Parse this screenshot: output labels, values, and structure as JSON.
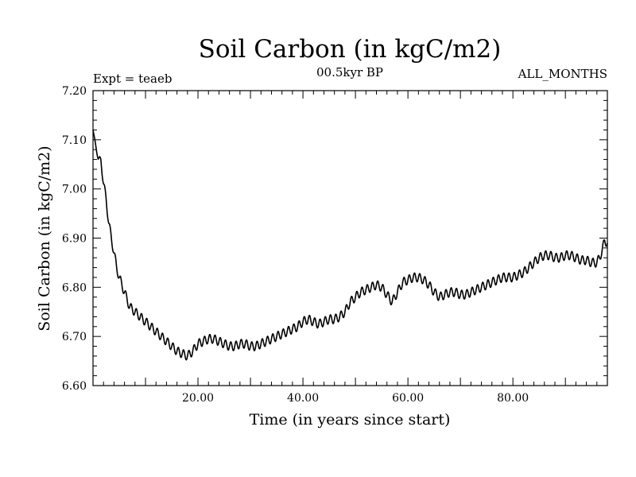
{
  "chart_data": {
    "type": "line",
    "title": "Soil Carbon (in kgC/m2)",
    "subtitle": "00.5kyr BP",
    "experiment": "Expt = teaeb",
    "period": "ALL_MONTHS",
    "xlabel": "Time (in years since start)",
    "ylabel": "Soil Carbon (in kgC/m2)",
    "xlim": [
      0,
      98
    ],
    "ylim": [
      6.6,
      7.2
    ],
    "x_ticks": [
      20,
      40,
      60,
      80
    ],
    "x_tick_labels": [
      "20.00",
      "40.00",
      "60.00",
      "80.00"
    ],
    "y_ticks": [
      6.6,
      6.7,
      6.8,
      6.9,
      7.0,
      7.1,
      7.2
    ],
    "y_tick_labels": [
      "6.60",
      "6.70",
      "6.80",
      "6.90",
      "7.00",
      "7.10",
      "7.20"
    ],
    "series": [
      {
        "name": "Soil Carbon",
        "x": [
          0,
          0.5,
          1,
          1.5,
          2,
          2.5,
          3,
          3.5,
          4,
          4.5,
          5,
          6,
          7,
          8,
          9,
          10,
          11,
          12,
          13,
          14,
          15,
          16,
          17,
          18,
          19,
          20,
          21,
          22,
          23,
          24,
          25,
          26,
          27,
          28,
          29,
          30,
          31,
          32,
          33,
          34,
          35,
          36,
          37,
          38,
          39,
          40,
          41,
          42,
          43,
          44,
          45,
          46,
          47,
          48,
          49,
          50,
          51,
          52,
          53,
          54,
          55,
          56,
          57,
          58,
          59,
          60,
          61,
          62,
          63,
          64,
          65,
          66,
          67,
          68,
          69,
          70,
          71,
          72,
          73,
          74,
          75,
          76,
          77,
          78,
          79,
          80,
          81,
          82,
          83,
          84,
          85,
          86,
          87,
          88,
          89,
          90,
          91,
          92,
          93,
          94,
          95,
          96,
          96.5,
          97,
          97.5,
          98
        ],
        "values": [
          7.12,
          7.09,
          7.06,
          7.06,
          7.01,
          6.98,
          6.93,
          6.9,
          6.87,
          6.84,
          6.82,
          6.79,
          6.76,
          6.75,
          6.74,
          6.73,
          6.72,
          6.71,
          6.7,
          6.69,
          6.68,
          6.67,
          6.665,
          6.66,
          6.67,
          6.685,
          6.69,
          6.695,
          6.695,
          6.69,
          6.685,
          6.68,
          6.68,
          6.685,
          6.685,
          6.68,
          6.68,
          6.685,
          6.69,
          6.695,
          6.7,
          6.705,
          6.71,
          6.715,
          6.72,
          6.73,
          6.735,
          6.73,
          6.725,
          6.73,
          6.735,
          6.735,
          6.74,
          6.75,
          6.77,
          6.78,
          6.79,
          6.795,
          6.8,
          6.805,
          6.8,
          6.785,
          6.77,
          6.79,
          6.81,
          6.815,
          6.82,
          6.82,
          6.815,
          6.805,
          6.79,
          6.78,
          6.785,
          6.79,
          6.79,
          6.785,
          6.785,
          6.79,
          6.795,
          6.8,
          6.805,
          6.81,
          6.815,
          6.82,
          6.82,
          6.82,
          6.825,
          6.83,
          6.84,
          6.85,
          6.86,
          6.865,
          6.865,
          6.86,
          6.86,
          6.865,
          6.865,
          6.86,
          6.855,
          6.855,
          6.85,
          6.85,
          6.86,
          6.875,
          6.895,
          6.89
        ],
        "color": "#000000"
      }
    ]
  }
}
